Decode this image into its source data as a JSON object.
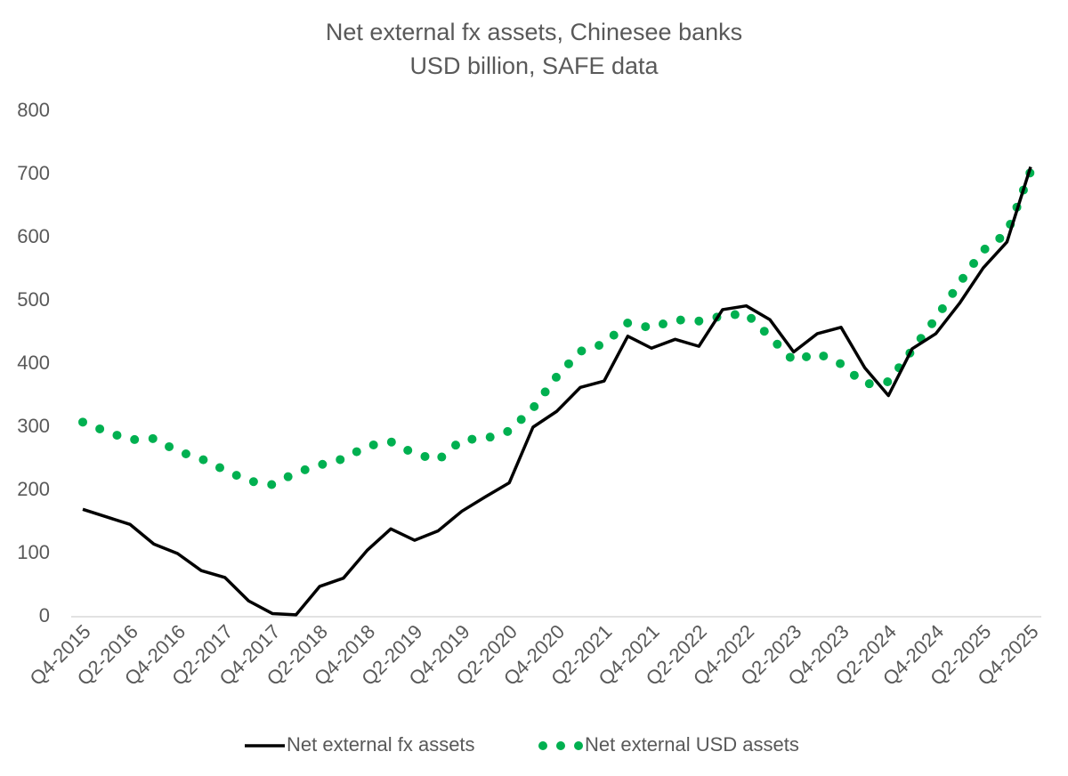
{
  "chart_data": {
    "type": "line",
    "title": "Net external fx assets, Chinesee banks",
    "subtitle": "USD billion, SAFE data",
    "categories": [
      "Q4-2015",
      null,
      "Q2-2016",
      null,
      "Q4-2016",
      null,
      "Q2-2017",
      null,
      "Q4-2017",
      null,
      "Q2-2018",
      null,
      "Q4-2018",
      null,
      "Q2-2019",
      null,
      "Q4-2019",
      null,
      "Q2-2020",
      null,
      "Q4-2020",
      null,
      "Q2-2021",
      null,
      "Q4-2021",
      null,
      "Q2-2022",
      null,
      "Q4-2022",
      null,
      "Q2-2023",
      null,
      "Q4-2023",
      null,
      "Q2-2024",
      null,
      "Q4-2024",
      null,
      "Q2-2025",
      null,
      "Q4-2025"
    ],
    "series": [
      {
        "name": "Net external fx assets",
        "color": "#000000",
        "style": "solid",
        "values": [
          170,
          158,
          146,
          115,
          100,
          73,
          62,
          25,
          5,
          3,
          48,
          61,
          105,
          139,
          121,
          136,
          167,
          190,
          212,
          300,
          325,
          363,
          373,
          444,
          425,
          439,
          428,
          486,
          492,
          470,
          419,
          448,
          458,
          394,
          350,
          424,
          448,
          496,
          552,
          593,
          712
        ]
      },
      {
        "name": "Net external USD assets",
        "color": "#00b050",
        "style": "dotted",
        "values": [
          308,
          293,
          280,
          282,
          262,
          250,
          232,
          215,
          209,
          228,
          240,
          250,
          270,
          277,
          258,
          248,
          280,
          282,
          294,
          330,
          380,
          420,
          432,
          465,
          457,
          470,
          468,
          476,
          480,
          443,
          405,
          417,
          400,
          368,
          372,
          422,
          472,
          528,
          580,
          607,
          705
        ]
      }
    ],
    "ylim": [
      0,
      800
    ],
    "yticks": [
      0,
      100,
      200,
      300,
      400,
      500,
      600,
      700,
      800
    ],
    "grid": false,
    "legend": "bottom"
  }
}
